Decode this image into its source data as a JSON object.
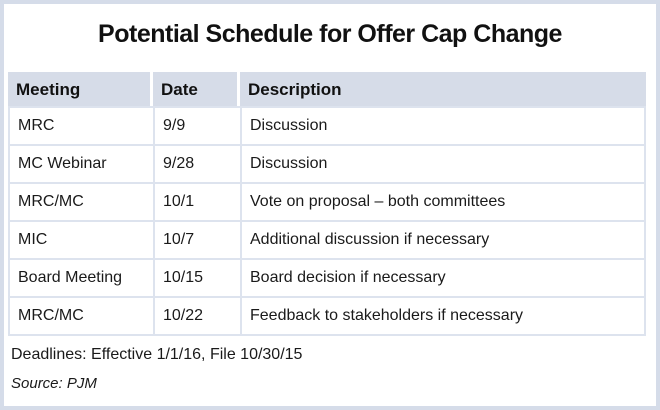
{
  "title": "Potential Schedule for Offer Cap Change",
  "colors": {
    "outer_border": "#d5dce9",
    "header_bg": "#d6dce8",
    "grid_line": "#dde3ee",
    "text": "#1a1a1a"
  },
  "table": {
    "headers": [
      "Meeting",
      "Date",
      "Description"
    ],
    "rows": [
      {
        "meeting": "MRC",
        "date": "9/9",
        "description": "Discussion"
      },
      {
        "meeting": "MC Webinar",
        "date": "9/28",
        "description": "Discussion"
      },
      {
        "meeting": "MRC/MC",
        "date": "10/1",
        "description": "Vote on proposal – both committees"
      },
      {
        "meeting": "MIC",
        "date": "10/7",
        "description": "Additional discussion if necessary"
      },
      {
        "meeting": "Board Meeting",
        "date": "10/15",
        "description": "Board decision if necessary"
      },
      {
        "meeting": "MRC/MC",
        "date": "10/22",
        "description": "Feedback to stakeholders if necessary"
      }
    ]
  },
  "footer": {
    "deadlines": "Deadlines: Effective 1/1/16, File 10/30/15",
    "source": "Source: PJM"
  }
}
